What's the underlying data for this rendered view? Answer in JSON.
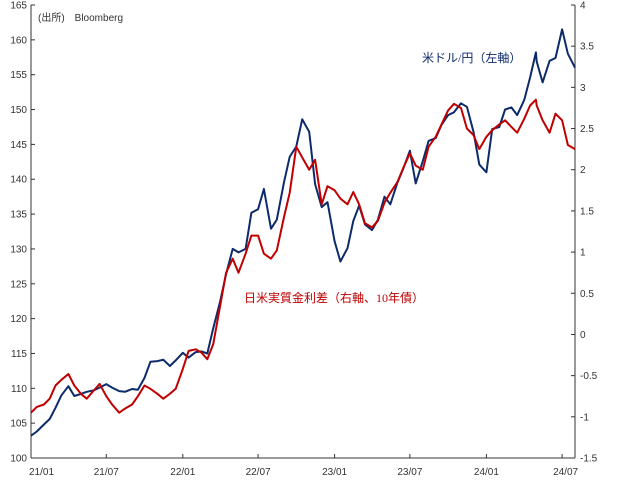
{
  "chart_data": {
    "type": "line",
    "source": "(出所)　Bloomberg",
    "x_ticks": [
      "21/01",
      "21/07",
      "22/01",
      "22/07",
      "23/01",
      "23/07",
      "24/01",
      "24/07"
    ],
    "left_axis": {
      "ylim": [
        100,
        165
      ],
      "ticks": [
        100,
        105,
        110,
        115,
        120,
        125,
        130,
        135,
        140,
        145,
        150,
        155,
        160,
        165
      ]
    },
    "right_axis": {
      "ylim": [
        -1.5,
        4
      ],
      "ticks": [
        "-1.5",
        "-1",
        "-0.5",
        "0",
        "0.5",
        "1",
        "1.5",
        "2",
        "2.5",
        "3",
        "3.5",
        "4"
      ]
    },
    "series": [
      {
        "name": "米ドル/円（左軸）",
        "axis": "left",
        "color": "#0d2a6b",
        "points": [
          [
            "2021-01-01",
            103.2
          ],
          [
            "2021-01-15",
            103.8
          ],
          [
            "2021-02-01",
            104.8
          ],
          [
            "2021-02-15",
            105.6
          ],
          [
            "2021-03-01",
            107.2
          ],
          [
            "2021-03-15",
            109.0
          ],
          [
            "2021-04-01",
            110.3
          ],
          [
            "2021-04-15",
            108.9
          ],
          [
            "2021-05-01",
            109.2
          ],
          [
            "2021-05-15",
            109.5
          ],
          [
            "2021-06-01",
            109.7
          ],
          [
            "2021-06-15",
            110.1
          ],
          [
            "2021-07-01",
            110.6
          ],
          [
            "2021-07-15",
            110.1
          ],
          [
            "2021-08-01",
            109.6
          ],
          [
            "2021-08-15",
            109.5
          ],
          [
            "2021-09-01",
            109.9
          ],
          [
            "2021-09-15",
            109.8
          ],
          [
            "2021-10-01",
            111.5
          ],
          [
            "2021-10-15",
            113.8
          ],
          [
            "2021-11-01",
            113.9
          ],
          [
            "2021-11-15",
            114.1
          ],
          [
            "2021-12-01",
            113.2
          ],
          [
            "2021-12-15",
            114.0
          ],
          [
            "2022-01-01",
            115.1
          ],
          [
            "2022-01-15",
            114.4
          ],
          [
            "2022-02-01",
            115.2
          ],
          [
            "2022-02-15",
            115.3
          ],
          [
            "2022-03-01",
            115.0
          ],
          [
            "2022-03-15",
            118.6
          ],
          [
            "2022-04-01",
            122.5
          ],
          [
            "2022-04-15",
            126.4
          ],
          [
            "2022-05-01",
            130.0
          ],
          [
            "2022-05-15",
            129.5
          ],
          [
            "2022-06-01",
            130.0
          ],
          [
            "2022-06-15",
            135.2
          ],
          [
            "2022-07-01",
            135.7
          ],
          [
            "2022-07-15",
            138.6
          ],
          [
            "2022-08-01",
            132.9
          ],
          [
            "2022-08-15",
            134.2
          ],
          [
            "2022-09-01",
            139.5
          ],
          [
            "2022-09-15",
            143.2
          ],
          [
            "2022-10-01",
            144.7
          ],
          [
            "2022-10-15",
            148.6
          ],
          [
            "2022-11-01",
            146.8
          ],
          [
            "2022-11-15",
            139.3
          ],
          [
            "2022-12-01",
            136.0
          ],
          [
            "2022-12-15",
            136.7
          ],
          [
            "2023-01-01",
            131.1
          ],
          [
            "2023-01-15",
            128.2
          ],
          [
            "2023-02-01",
            130.1
          ],
          [
            "2023-02-15",
            134.0
          ],
          [
            "2023-03-01",
            136.2
          ],
          [
            "2023-03-15",
            133.5
          ],
          [
            "2023-04-01",
            132.7
          ],
          [
            "2023-04-15",
            134.2
          ],
          [
            "2023-05-01",
            137.5
          ],
          [
            "2023-05-15",
            136.4
          ],
          [
            "2023-06-01",
            139.5
          ],
          [
            "2023-06-15",
            141.5
          ],
          [
            "2023-07-01",
            144.1
          ],
          [
            "2023-07-15",
            139.4
          ],
          [
            "2023-08-01",
            142.6
          ],
          [
            "2023-08-15",
            145.5
          ],
          [
            "2023-09-01",
            145.9
          ],
          [
            "2023-09-15",
            147.8
          ],
          [
            "2023-10-01",
            149.2
          ],
          [
            "2023-10-15",
            149.6
          ],
          [
            "2023-11-01",
            150.9
          ],
          [
            "2023-11-15",
            150.4
          ],
          [
            "2023-12-01",
            146.8
          ],
          [
            "2023-12-15",
            142.1
          ],
          [
            "2024-01-01",
            141.0
          ],
          [
            "2024-01-15",
            147.2
          ],
          [
            "2024-02-01",
            147.5
          ],
          [
            "2024-02-15",
            150.0
          ],
          [
            "2024-03-01",
            150.3
          ],
          [
            "2024-03-15",
            149.2
          ],
          [
            "2024-04-01",
            151.4
          ],
          [
            "2024-04-15",
            154.6
          ],
          [
            "2024-04-29",
            158.2
          ],
          [
            "2024-05-01",
            156.9
          ],
          [
            "2024-05-15",
            153.9
          ],
          [
            "2024-06-01",
            157.0
          ],
          [
            "2024-06-15",
            157.4
          ],
          [
            "2024-07-01",
            161.5
          ],
          [
            "2024-07-15",
            158.0
          ],
          [
            "2024-08-01",
            156.0
          ]
        ]
      },
      {
        "name": "日米実質金利差（右軸、10年債）",
        "axis": "right",
        "color": "#c00000",
        "points": [
          [
            "2021-01-01",
            -0.95
          ],
          [
            "2021-01-15",
            -0.88
          ],
          [
            "2021-02-01",
            -0.85
          ],
          [
            "2021-02-15",
            -0.78
          ],
          [
            "2021-03-01",
            -0.62
          ],
          [
            "2021-03-15",
            -0.55
          ],
          [
            "2021-04-01",
            -0.48
          ],
          [
            "2021-04-15",
            -0.62
          ],
          [
            "2021-05-01",
            -0.72
          ],
          [
            "2021-05-15",
            -0.78
          ],
          [
            "2021-06-01",
            -0.68
          ],
          [
            "2021-06-15",
            -0.6
          ],
          [
            "2021-07-01",
            -0.75
          ],
          [
            "2021-07-15",
            -0.85
          ],
          [
            "2021-08-01",
            -0.95
          ],
          [
            "2021-08-15",
            -0.9
          ],
          [
            "2021-09-01",
            -0.85
          ],
          [
            "2021-09-15",
            -0.75
          ],
          [
            "2021-10-01",
            -0.62
          ],
          [
            "2021-10-15",
            -0.66
          ],
          [
            "2021-11-01",
            -0.72
          ],
          [
            "2021-11-15",
            -0.78
          ],
          [
            "2021-12-01",
            -0.72
          ],
          [
            "2021-12-15",
            -0.66
          ],
          [
            "2022-01-01",
            -0.42
          ],
          [
            "2022-01-15",
            -0.2
          ],
          [
            "2022-02-01",
            -0.18
          ],
          [
            "2022-02-15",
            -0.22
          ],
          [
            "2022-03-01",
            -0.3
          ],
          [
            "2022-03-15",
            -0.12
          ],
          [
            "2022-04-01",
            0.35
          ],
          [
            "2022-04-15",
            0.75
          ],
          [
            "2022-05-01",
            0.92
          ],
          [
            "2022-05-15",
            0.75
          ],
          [
            "2022-06-01",
            0.98
          ],
          [
            "2022-06-15",
            1.2
          ],
          [
            "2022-07-01",
            1.2
          ],
          [
            "2022-07-15",
            0.98
          ],
          [
            "2022-08-01",
            0.92
          ],
          [
            "2022-08-15",
            1.02
          ],
          [
            "2022-09-01",
            1.42
          ],
          [
            "2022-09-15",
            1.72
          ],
          [
            "2022-10-01",
            2.28
          ],
          [
            "2022-10-15",
            2.15
          ],
          [
            "2022-11-01",
            2.0
          ],
          [
            "2022-11-15",
            2.12
          ],
          [
            "2022-12-01",
            1.58
          ],
          [
            "2022-12-15",
            1.8
          ],
          [
            "2023-01-01",
            1.75
          ],
          [
            "2023-01-15",
            1.65
          ],
          [
            "2023-02-01",
            1.58
          ],
          [
            "2023-02-15",
            1.73
          ],
          [
            "2023-03-01",
            1.58
          ],
          [
            "2023-03-15",
            1.35
          ],
          [
            "2023-04-01",
            1.3
          ],
          [
            "2023-04-15",
            1.38
          ],
          [
            "2023-05-01",
            1.6
          ],
          [
            "2023-05-15",
            1.72
          ],
          [
            "2023-06-01",
            1.85
          ],
          [
            "2023-06-15",
            2.02
          ],
          [
            "2023-07-01",
            2.2
          ],
          [
            "2023-07-15",
            2.05
          ],
          [
            "2023-08-01",
            2.0
          ],
          [
            "2023-08-15",
            2.28
          ],
          [
            "2023-09-01",
            2.4
          ],
          [
            "2023-09-15",
            2.55
          ],
          [
            "2023-10-01",
            2.72
          ],
          [
            "2023-10-15",
            2.8
          ],
          [
            "2023-11-01",
            2.75
          ],
          [
            "2023-11-15",
            2.5
          ],
          [
            "2023-12-01",
            2.42
          ],
          [
            "2023-12-15",
            2.25
          ],
          [
            "2024-01-01",
            2.4
          ],
          [
            "2024-01-15",
            2.48
          ],
          [
            "2024-02-01",
            2.55
          ],
          [
            "2024-02-15",
            2.6
          ],
          [
            "2024-03-01",
            2.52
          ],
          [
            "2024-03-15",
            2.45
          ],
          [
            "2024-04-01",
            2.62
          ],
          [
            "2024-04-15",
            2.78
          ],
          [
            "2024-04-29",
            2.85
          ],
          [
            "2024-05-01",
            2.78
          ],
          [
            "2024-05-15",
            2.6
          ],
          [
            "2024-06-01",
            2.45
          ],
          [
            "2024-06-15",
            2.68
          ],
          [
            "2024-07-01",
            2.6
          ],
          [
            "2024-07-15",
            2.3
          ],
          [
            "2024-08-01",
            2.25
          ]
        ]
      }
    ],
    "usdjpy_label": "米ドル/円（左軸）",
    "spread_label": "日米実質金利差（右軸、10年債）"
  }
}
